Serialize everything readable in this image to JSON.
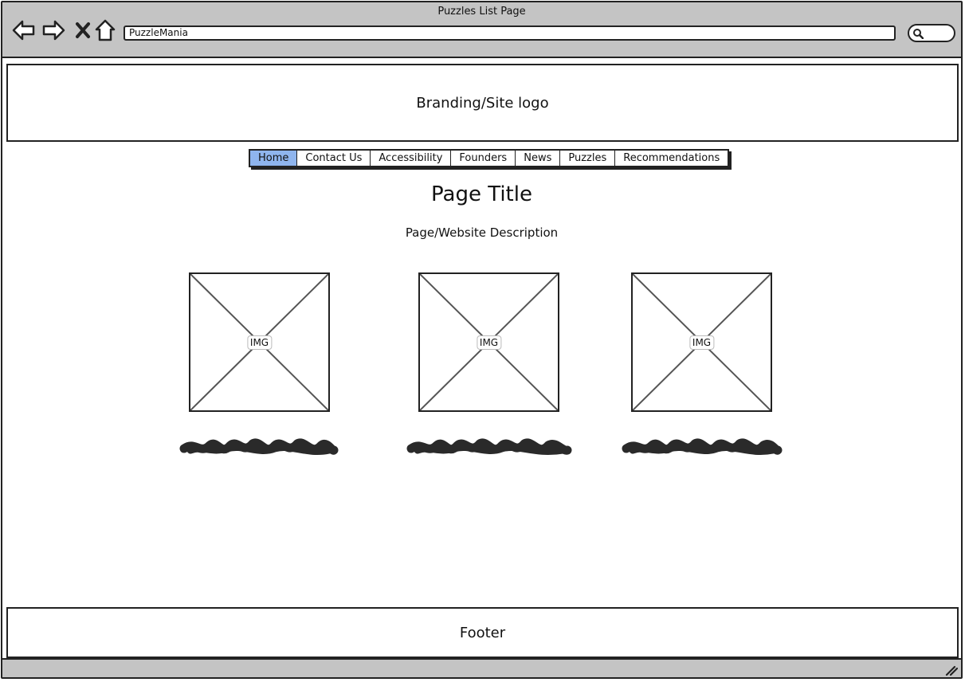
{
  "browser": {
    "window_title": "Puzzles List Page",
    "address": "PuzzleMania",
    "icons": [
      "back-arrow-icon",
      "forward-arrow-icon",
      "close-x-icon",
      "home-icon",
      "search-icon"
    ]
  },
  "branding": {
    "label": "Branding/Site logo"
  },
  "nav": {
    "tabs": [
      {
        "label": "Home",
        "active": true
      },
      {
        "label": "Contact Us",
        "active": false
      },
      {
        "label": "Accessibility",
        "active": false
      },
      {
        "label": "Founders",
        "active": false
      },
      {
        "label": "News",
        "active": false
      },
      {
        "label": "Puzzles",
        "active": false
      },
      {
        "label": "Recommendations",
        "active": false
      }
    ],
    "active_color": "#8fb5ee"
  },
  "main": {
    "title": "Page Title",
    "description": "Page/Website Description",
    "cards": [
      {
        "image_label": "IMG"
      },
      {
        "image_label": "IMG"
      },
      {
        "image_label": "IMG"
      }
    ]
  },
  "footer": {
    "label": "Footer"
  },
  "colors": {
    "chrome": "#c4c4c4",
    "border": "#222222"
  }
}
